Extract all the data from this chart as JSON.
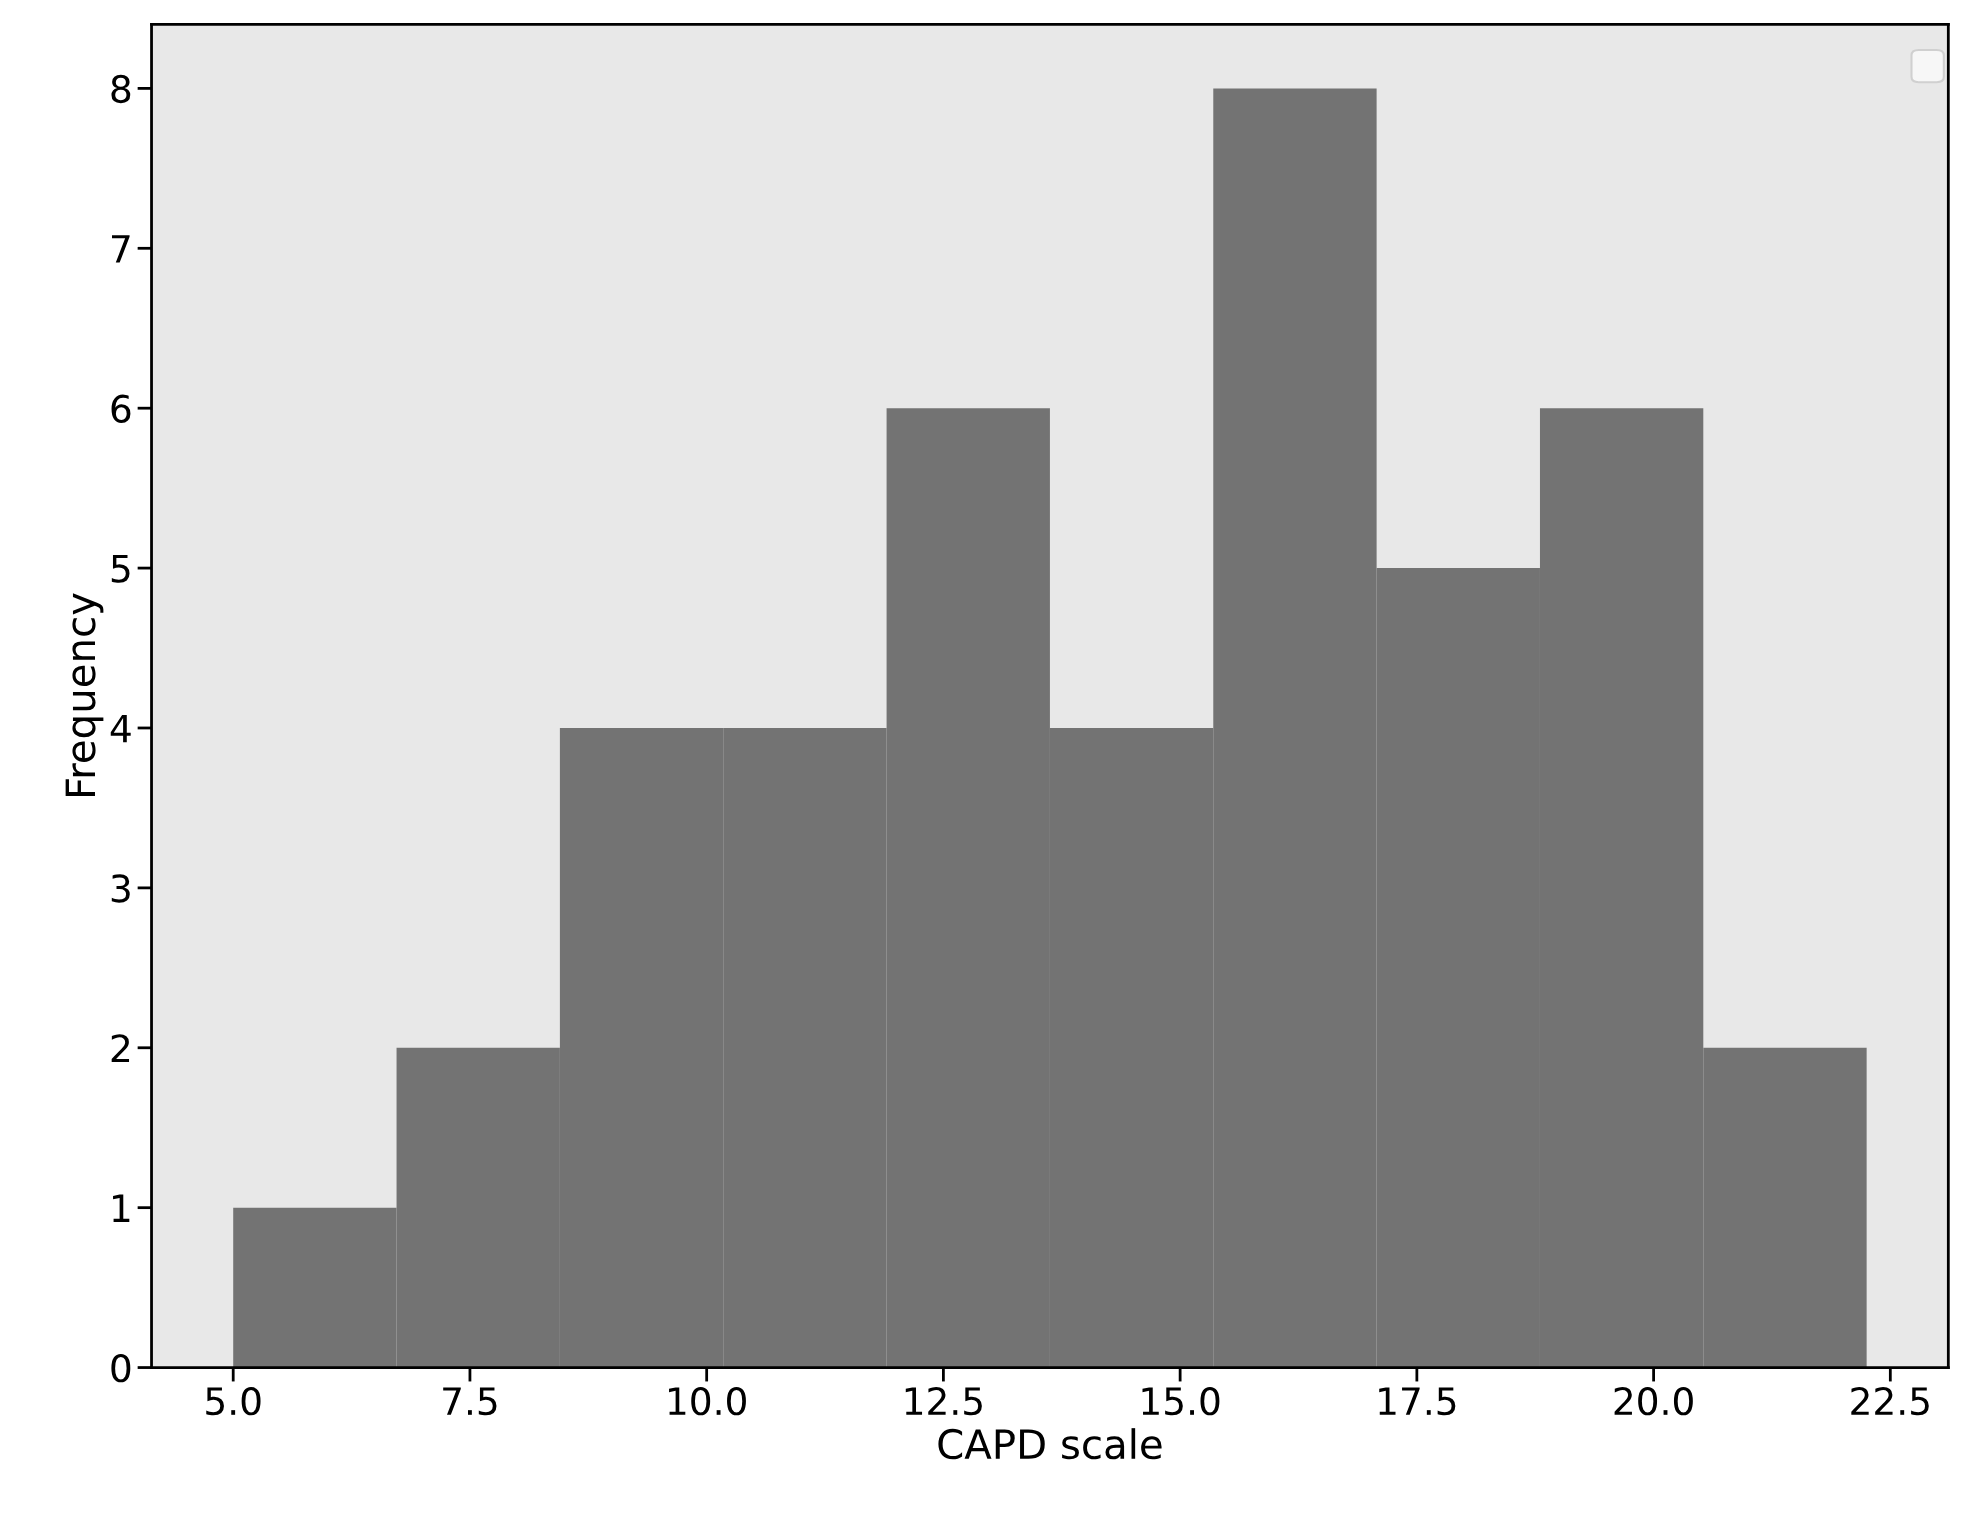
{
  "chart_data": {
    "type": "histogram",
    "xlabel": "CAPD scale",
    "ylabel": "Frequency",
    "bins": [
      5.0,
      6.725,
      8.45,
      10.175,
      11.9,
      13.625,
      15.35,
      17.075,
      18.8,
      20.525,
      22.25
    ],
    "values": [
      1,
      2,
      4,
      4,
      6,
      4,
      8,
      5,
      6,
      2
    ],
    "color": "#737373",
    "xlim": [
      4.1375,
      23.1125
    ],
    "xticks": [
      {
        "value": 5,
        "label": "5.0"
      },
      {
        "value": 7.5,
        "label": "7.5"
      },
      {
        "value": 10,
        "label": "10.0"
      },
      {
        "value": 12.5,
        "label": "12.5"
      },
      {
        "value": 15,
        "label": "15.0"
      },
      {
        "value": 17.5,
        "label": "17.5"
      },
      {
        "value": 20,
        "label": "20.0"
      },
      {
        "value": 22.5,
        "label": "22.5"
      }
    ],
    "ylim": [
      0,
      8.4
    ],
    "yticks": [
      0,
      1,
      2,
      3,
      4,
      5,
      6,
      7,
      8
    ],
    "grid": false
  }
}
